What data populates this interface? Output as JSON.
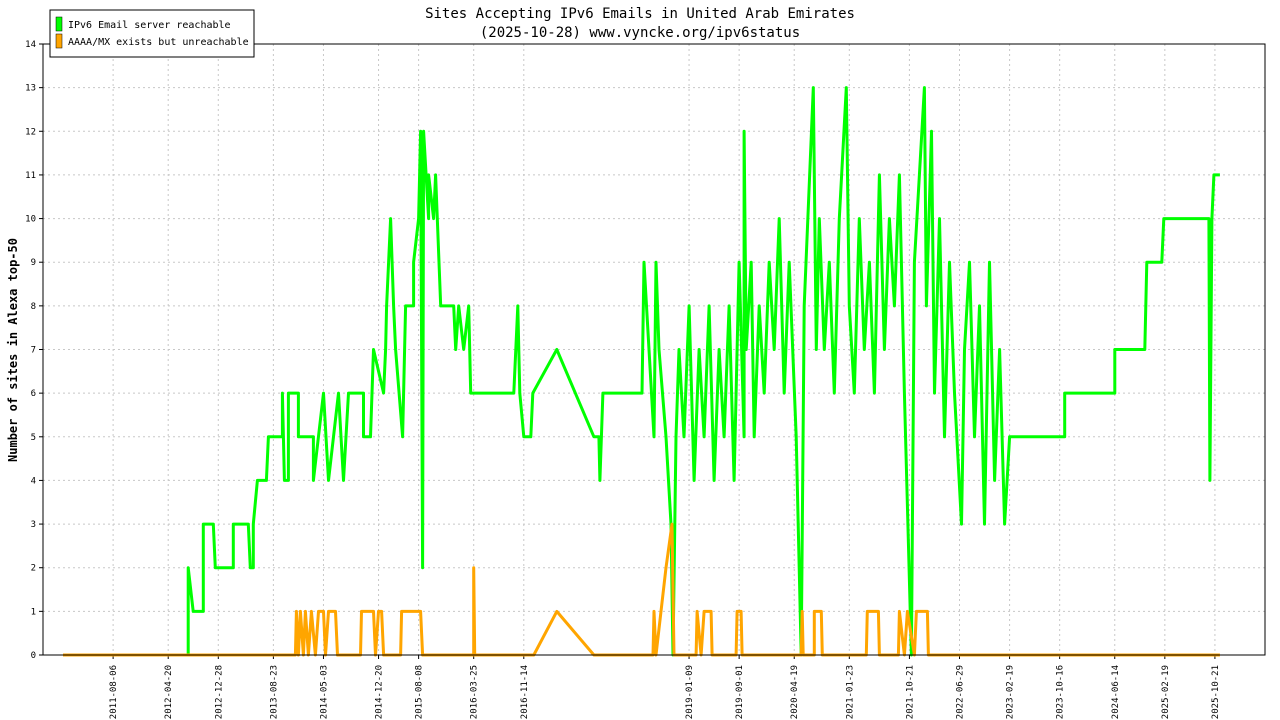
{
  "chart_data": {
    "type": "line",
    "title": "Sites Accepting IPv6 Emails in United Arab Emirates",
    "subtitle": "(2025-10-28) www.vyncke.org/ipv6status",
    "y_label": "Number of sites in Alexa top-50",
    "legend": "upper left",
    "grid": true,
    "xlim": [
      -4,
      240
    ],
    "ylim": [
      0,
      14
    ],
    "yticks": [
      0,
      1,
      2,
      3,
      4,
      5,
      6,
      7,
      8,
      9,
      10,
      11,
      12,
      13,
      14
    ],
    "xticks": [
      {
        "value": 10,
        "label": "2011-08-06"
      },
      {
        "value": 21,
        "label": "2012-04-20"
      },
      {
        "value": 31,
        "label": "2012-12-28"
      },
      {
        "value": 42,
        "label": "2013-08-23"
      },
      {
        "value": 52,
        "label": "2014-05-03"
      },
      {
        "value": 63,
        "label": "2014-12-20"
      },
      {
        "value": 71,
        "label": "2015-08-08"
      },
      {
        "value": 82,
        "label": "2016-03-25"
      },
      {
        "value": 92,
        "label": "2016-11-14"
      },
      {
        "value": 125,
        "label": "2019-01-09"
      },
      {
        "value": 135,
        "label": "2019-09-01"
      },
      {
        "value": 146,
        "label": "2020-04-19"
      },
      {
        "value": 157,
        "label": "2021-01-23"
      },
      {
        "value": 169,
        "label": "2021-10-21"
      },
      {
        "value": 179,
        "label": "2022-06-29"
      },
      {
        "value": 189,
        "label": "2023-02-19"
      },
      {
        "value": 199,
        "label": "2023-10-16"
      },
      {
        "value": 210,
        "label": "2024-06-14"
      },
      {
        "value": 220,
        "label": "2025-02-19"
      },
      {
        "value": 230,
        "label": "2025-10-21"
      }
    ],
    "series": [
      {
        "name": "IPv6 Email server reachable",
        "color": "#00ff00",
        "x": [
          0,
          25,
          25,
          26,
          28,
          28,
          30,
          30.4,
          34,
          34,
          37,
          37.4,
          38,
          38,
          38.8,
          40.6,
          41,
          43.8,
          43.8,
          44.2,
          45,
          45,
          47,
          47,
          50,
          50,
          52,
          53,
          55,
          56,
          57,
          60,
          60,
          61.4,
          62,
          64,
          64.4,
          64.6,
          65.4,
          66,
          66.4,
          67.8,
          68.4,
          70,
          70,
          71,
          71.4,
          71.8,
          72,
          73,
          73,
          74,
          74.4,
          75.4,
          78,
          78.4,
          79,
          80,
          81,
          81.4,
          90,
          90.8,
          91.2,
          92,
          93.4,
          93.8,
          98.6,
          106,
          107,
          107.2,
          107.8,
          115.6,
          116,
          118,
          118.4,
          119,
          120.4,
          121.4,
          121.8,
          122.4,
          123,
          124,
          125,
          126,
          127,
          128,
          129,
          130,
          131,
          132,
          133,
          134,
          135,
          136,
          136,
          136.4,
          137.4,
          138,
          139,
          140,
          141,
          142,
          143,
          144,
          145,
          146.4,
          147.4,
          148,
          149.8,
          150.4,
          151,
          152,
          153,
          154,
          155,
          156.4,
          157,
          158,
          159,
          160,
          161,
          162,
          163,
          164,
          165,
          166,
          167,
          168,
          169.4,
          170,
          171,
          172,
          172.4,
          173.4,
          174,
          175,
          176,
          177,
          178,
          179.4,
          180,
          181,
          182,
          183,
          184,
          185,
          186,
          187,
          188,
          189,
          189.4,
          200,
          200,
          210,
          210,
          216,
          216.4,
          219.4,
          219.8,
          228.8,
          229,
          229.4,
          229.8,
          231
        ],
        "values": [
          0,
          0,
          2,
          1,
          1,
          3,
          3,
          2,
          2,
          3,
          3,
          2,
          2,
          3,
          4,
          4,
          5,
          5,
          6,
          4,
          4,
          6,
          6,
          5,
          5,
          4,
          6,
          4,
          6,
          4,
          6,
          6,
          5,
          5,
          7,
          6,
          7,
          8,
          10,
          8,
          7,
          5,
          8,
          8,
          9,
          10,
          12,
          2,
          12,
          10,
          11,
          10,
          11,
          8,
          8,
          7,
          8,
          7,
          8,
          6,
          6,
          8,
          6,
          5,
          5,
          6,
          7,
          5,
          5,
          4,
          6,
          6,
          9,
          5,
          9,
          7,
          5,
          3,
          0,
          5,
          7,
          5,
          8,
          4,
          7,
          5,
          8,
          4,
          7,
          5,
          8,
          4,
          9,
          5,
          12,
          7,
          9,
          5,
          8,
          6,
          9,
          7,
          10,
          6,
          9,
          5,
          0,
          8,
          13,
          7,
          10,
          7,
          9,
          6,
          10,
          13,
          8,
          6,
          10,
          7,
          9,
          6,
          11,
          7,
          10,
          8,
          11,
          6,
          0,
          9,
          11,
          13,
          8,
          12,
          6,
          10,
          5,
          9,
          6,
          3,
          7,
          9,
          5,
          8,
          3,
          9,
          4,
          7,
          3,
          5,
          5,
          5,
          6,
          6,
          7,
          7,
          9,
          9,
          10,
          10,
          4,
          10,
          11,
          11
        ]
      },
      {
        "name": "AAAA/MX exists but unreachable",
        "color": "#ffa500",
        "x": [
          0,
          46.4,
          46.6,
          47,
          47.4,
          48,
          48.4,
          49,
          49.6,
          50.4,
          51,
          52,
          52.4,
          53,
          54.4,
          54.8,
          59.4,
          59.6,
          62,
          62.4,
          63,
          63.6,
          64,
          67.4,
          67.6,
          71.4,
          71.8,
          82,
          82,
          82.2,
          94,
          98.6,
          106,
          117.8,
          118,
          118.4,
          120.4,
          121.6,
          122,
          126.4,
          126.6,
          127.4,
          128,
          129.4,
          129.6,
          134.4,
          134.6,
          135.4,
          135.6,
          147.4,
          147.6,
          147.8,
          150,
          150,
          151.4,
          151.6,
          160.4,
          160.6,
          162.8,
          163,
          166.8,
          167,
          168,
          168.6,
          170,
          170.4,
          172.6,
          172.8,
          231
        ],
        "values": [
          0,
          0,
          1,
          0,
          1,
          0,
          1,
          0,
          1,
          0,
          1,
          1,
          0,
          1,
          1,
          0,
          0,
          1,
          1,
          0,
          1,
          1,
          0,
          0,
          1,
          1,
          0,
          0,
          2,
          0,
          0,
          1,
          0,
          0,
          1,
          0,
          2,
          3,
          0,
          0,
          1,
          0,
          1,
          1,
          0,
          0,
          1,
          1,
          0,
          0,
          1,
          0,
          0,
          1,
          1,
          0,
          0,
          1,
          1,
          0,
          0,
          1,
          0,
          1,
          0,
          1,
          1,
          0,
          0
        ]
      }
    ]
  }
}
